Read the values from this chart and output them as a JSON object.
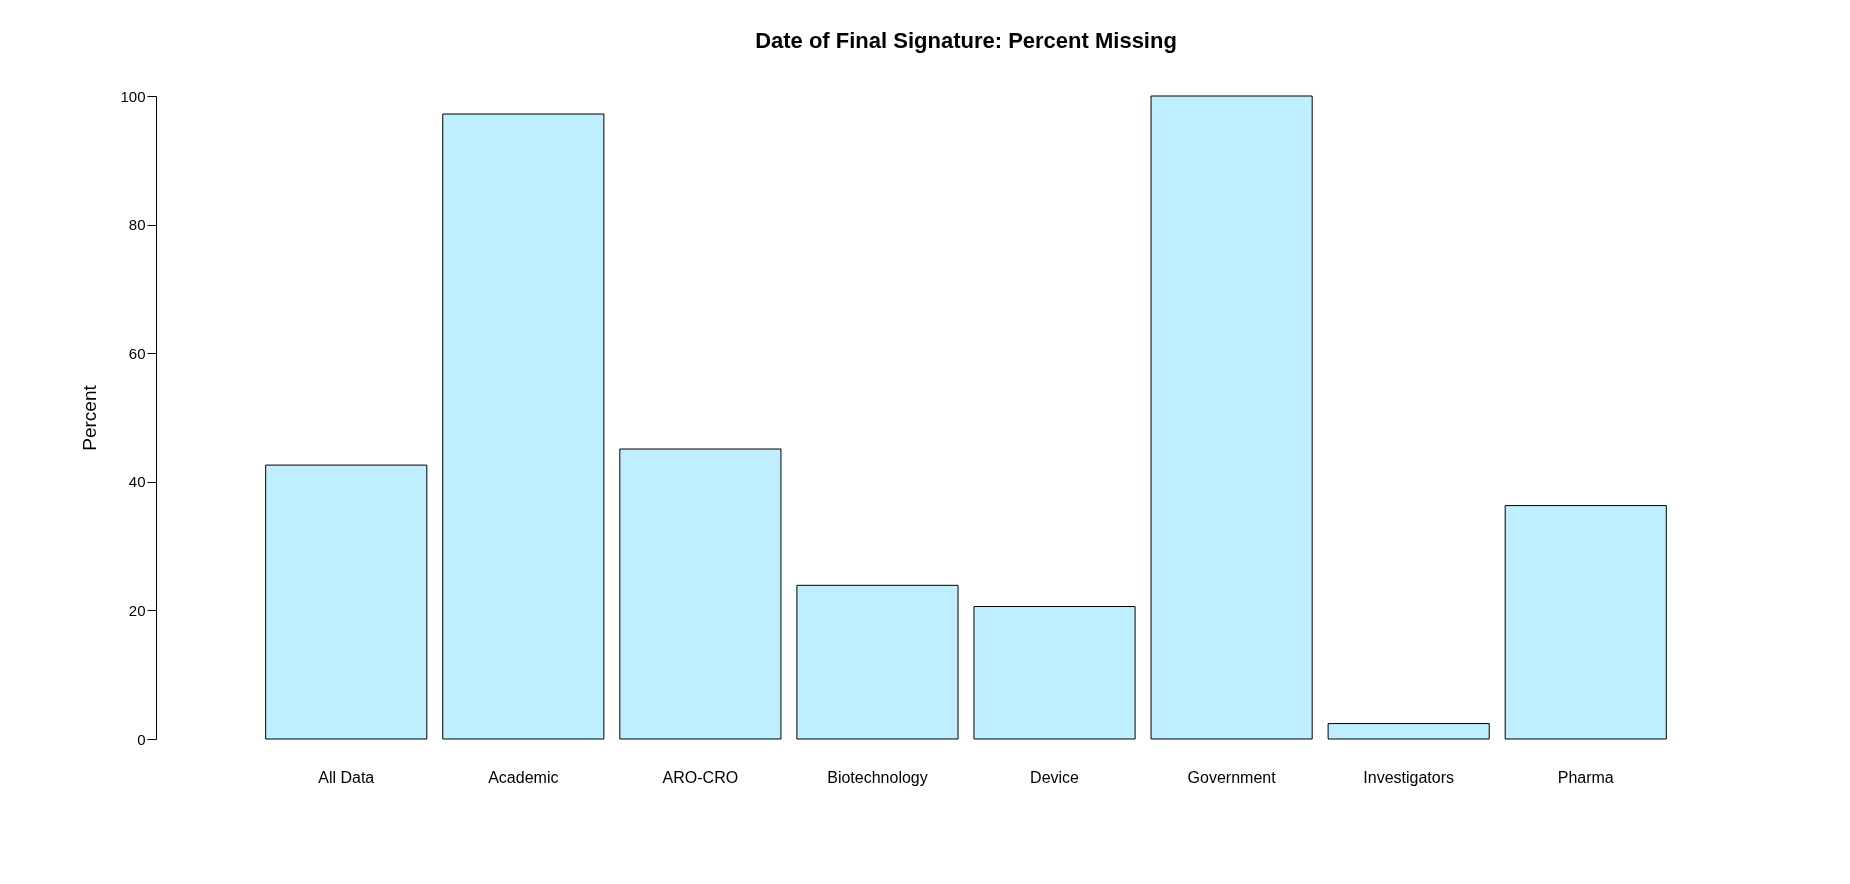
{
  "chart_data": {
    "type": "bar",
    "title": "Date of Final Signature: Percent Missing",
    "ylabel": "Percent",
    "categories": [
      "All Data",
      "Academic",
      "ARO-CRO",
      "Biotechnology",
      "Device",
      "Government",
      "Investigators",
      "Pharma"
    ],
    "values": [
      42.6,
      97.2,
      45.1,
      23.9,
      20.6,
      100,
      2.4,
      36.3
    ],
    "color": "#bfefff",
    "ylim": [
      0,
      100
    ],
    "yticks": [
      0,
      20,
      40,
      60,
      80,
      100
    ],
    "grid": false
  }
}
